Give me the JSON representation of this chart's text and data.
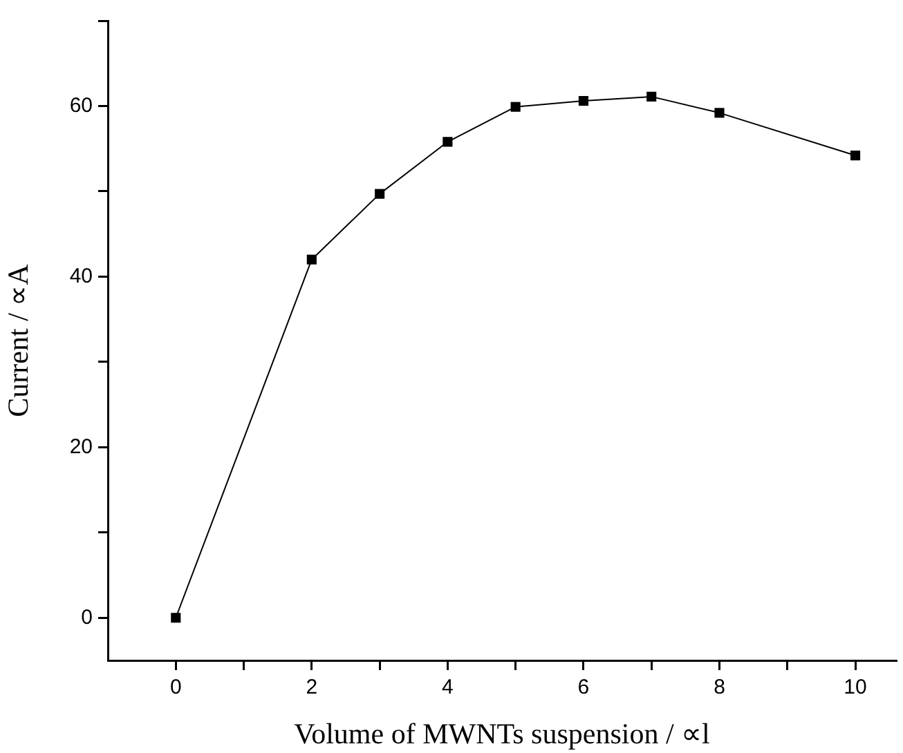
{
  "chart_data": {
    "type": "line",
    "xlabel": "Volume of MWNTs suspension / ∝l",
    "ylabel": "Current / ∝A",
    "x": [
      0,
      2,
      3,
      4,
      5,
      6,
      7,
      8,
      10
    ],
    "series": [
      {
        "color": "#000000",
        "values": [
          0,
          42,
          49.7,
          55.8,
          59.9,
          60.6,
          61.1,
          59.2,
          54.2
        ]
      }
    ],
    "xlim": [
      -1,
      10.6
    ],
    "xticks": [
      0,
      {
        "value": 1,
        "label": null
      },
      2,
      {
        "value": 3,
        "label": null
      },
      4,
      {
        "value": 5,
        "label": null
      },
      6,
      {
        "value": 7,
        "label": null
      },
      8,
      {
        "value": 9,
        "label": null
      },
      10
    ],
    "ylim": [
      -5,
      70
    ],
    "yticks": [
      0,
      {
        "value": 10,
        "label": null
      },
      20,
      {
        "value": 30,
        "label": null
      },
      40,
      {
        "value": 50,
        "label": null
      },
      60,
      {
        "value": 70,
        "label": null
      }
    ],
    "marker": "square",
    "line_style": "solid",
    "grid": false,
    "legend": false
  }
}
